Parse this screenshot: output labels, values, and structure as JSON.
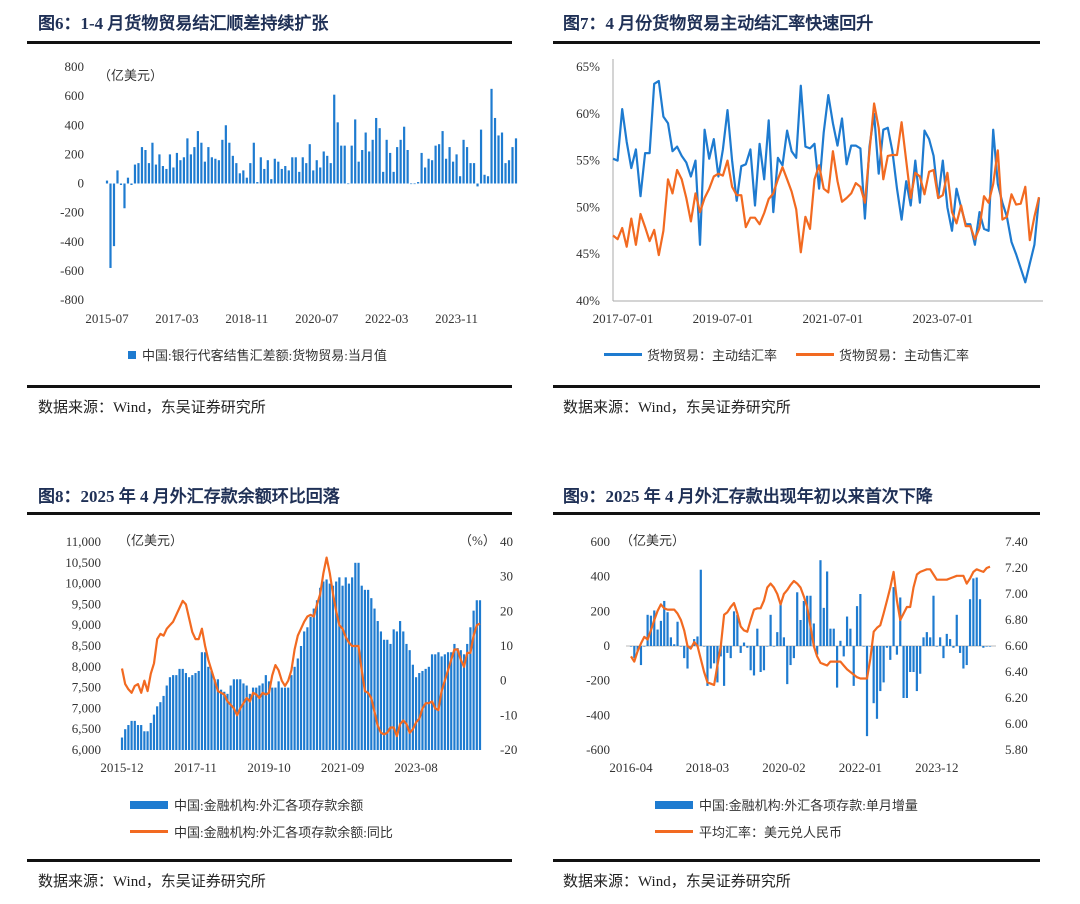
{
  "colors": {
    "blue": "#1e7bd0",
    "orange": "#f26a21",
    "title": "#1f3056"
  },
  "panels": [
    {
      "title": "图6：1-4 月货物贸易结汇顺差持续扩张",
      "source": "数据来源：Wind，东吴证券研究所"
    },
    {
      "title": "图7：4 月份货物贸易主动结汇率快速回升",
      "source": "数据来源：Wind，东吴证券研究所"
    },
    {
      "title": "图8：2025 年 4 月外汇存款余额环比回落",
      "source": "数据来源：Wind，东吴证券研究所"
    },
    {
      "title": "图9：2025 年 4 月外汇存款出现年初以来首次下降",
      "source": "数据来源：Wind，东吴证券研究所"
    }
  ],
  "chart_data": [
    {
      "type": "bar",
      "frequency": "monthly",
      "x_start": "2015-07",
      "x_ticks": [
        "2015-07",
        "2017-03",
        "2018-11",
        "2020-07",
        "2022-03",
        "2023-11"
      ],
      "y_unit_label": "（亿美元）",
      "ylim": [
        -800,
        800
      ],
      "y_ticks": [
        "800",
        "600",
        "400",
        "200",
        "0",
        "-200",
        "-400",
        "-600",
        "-800"
      ],
      "legend_position": "bottom",
      "series": [
        {
          "name": "中国:银行代客结售汇差额:货物贸易:当月值",
          "color": "#1e7bd0",
          "values": [
            20,
            -580,
            -430,
            90,
            -10,
            -170,
            40,
            -10,
            130,
            140,
            250,
            230,
            140,
            280,
            130,
            200,
            120,
            100,
            200,
            110,
            210,
            160,
            180,
            310,
            200,
            250,
            360,
            280,
            150,
            250,
            180,
            170,
            160,
            300,
            400,
            280,
            190,
            140,
            70,
            90,
            40,
            140,
            280,
            10,
            180,
            100,
            160,
            30,
            170,
            150,
            100,
            120,
            90,
            180,
            180,
            80,
            180,
            140,
            270,
            90,
            160,
            110,
            220,
            190,
            140,
            610,
            420,
            260,
            260,
            0,
            260,
            440,
            150,
            230,
            350,
            220,
            300,
            450,
            380,
            80,
            300,
            210,
            80,
            250,
            300,
            390,
            230,
            0,
            0,
            10,
            210,
            110,
            170,
            160,
            260,
            270,
            360,
            170,
            250,
            150,
            200,
            50,
            300,
            250,
            140,
            140,
            -20,
            370,
            60,
            50,
            650,
            450,
            330,
            350,
            140,
            160,
            250,
            310
          ]
        }
      ]
    },
    {
      "type": "line",
      "frequency": "monthly",
      "x_start": "2017-07-01",
      "x_ticks": [
        "2017-07-01",
        "2019-07-01",
        "2021-07-01",
        "2023-07-01"
      ],
      "ylim": [
        40,
        65
      ],
      "y_ticks": [
        "65%",
        "60%",
        "55%",
        "50%",
        "45%",
        "40%"
      ],
      "legend_position": "bottom",
      "series": [
        {
          "name": "货物贸易：主动结汇率",
          "color": "#1e7bd0",
          "values": [
            55.2,
            55,
            60.5,
            57,
            54.2,
            56.2,
            51.2,
            55.8,
            55.8,
            63.2,
            63.5,
            59.7,
            59,
            56,
            56.5,
            55.5,
            54.8,
            53.3,
            55,
            46,
            58.3,
            55.2,
            57.3,
            53.3,
            56.2,
            60.4,
            55,
            50.7,
            54.4,
            54.6,
            56.2,
            50.2,
            56.8,
            53,
            59.3,
            49.5,
            55.3,
            54.5,
            58.2,
            56,
            55.3,
            63,
            56.5,
            56.3,
            56.8,
            52,
            58,
            62,
            59,
            56.6,
            59.5,
            54.6,
            56.6,
            56.6,
            56.3,
            48.8,
            56.5,
            60,
            53.6,
            58.3,
            58.5,
            56,
            52,
            48.7,
            52.8,
            50.2,
            55,
            50.5,
            58.2,
            57.3,
            55.5,
            51,
            55,
            50,
            47.5,
            52,
            50,
            48.2,
            48.2,
            46,
            49.5,
            47.7,
            47.5,
            58.3,
            52.5,
            50.5,
            49,
            46.3,
            45,
            43.5,
            42,
            44,
            46,
            51
          ]
        },
        {
          "name": "货物贸易：主动售汇率",
          "color": "#f26a21",
          "values": [
            47,
            46.6,
            47.8,
            45.8,
            48.8,
            46,
            49.3,
            47.9,
            46.4,
            47.6,
            44.9,
            47.5,
            53,
            51.5,
            54,
            53,
            51,
            48.5,
            51.5,
            49.5,
            51,
            52,
            53.3,
            53.6,
            53.4,
            55,
            52.2,
            51.3,
            51.3,
            47.9,
            48.9,
            48.9,
            48.2,
            49.4,
            50.9,
            51.5,
            53,
            54.3,
            53,
            51.7,
            49.8,
            45.2,
            49,
            47.7,
            53,
            54.5,
            52,
            51.6,
            56,
            52.8,
            50.6,
            51,
            51.5,
            52.6,
            52.2,
            50.5,
            56,
            61.1,
            58.5,
            53,
            55.5,
            55.6,
            55.6,
            59.1,
            55,
            51,
            53.7,
            53.3,
            51.4,
            53.8,
            54,
            51,
            51.3,
            53.7,
            49.5,
            48.3,
            50.2,
            48,
            48,
            46.6,
            47.8,
            51.2,
            50.5,
            52.5,
            56.1,
            48.7,
            49,
            51.4,
            50.3,
            50.4,
            52.2,
            46.5,
            49,
            51.1
          ]
        }
      ]
    },
    {
      "type": "bar+line",
      "frequency": "monthly",
      "x_start": "2015-12",
      "x_ticks": [
        "2015-12",
        "2017-11",
        "2019-10",
        "2021-09",
        "2023-08"
      ],
      "y_unit_label": "（亿美元）",
      "y2_unit_label": "（%）",
      "ylim": [
        6000,
        11000
      ],
      "y2lim": [
        -20,
        40
      ],
      "y_ticks": [
        "11,000",
        "10,500",
        "10,000",
        "9,500",
        "9,000",
        "8,500",
        "8,000",
        "7,500",
        "7,000",
        "6,500",
        "6,000"
      ],
      "y2_ticks": [
        "40",
        "30",
        "20",
        "10",
        "0",
        "-10",
        "-20"
      ],
      "legend_position": "bottom",
      "series": [
        {
          "name": "中国:金融机构:外汇各项存款余额",
          "axis": "left",
          "color": "#1e7bd0",
          "values": [
            6300,
            6500,
            6600,
            6700,
            6700,
            6600,
            6600,
            6450,
            6450,
            6650,
            6850,
            7050,
            7150,
            7300,
            7550,
            7750,
            7800,
            7800,
            7950,
            7950,
            7850,
            7750,
            7800,
            7850,
            7900,
            8350,
            8350,
            8000,
            7900,
            7700,
            7700,
            7450,
            7400,
            7350,
            7550,
            7700,
            7700,
            7700,
            7600,
            7550,
            7350,
            7500,
            7500,
            7550,
            7600,
            7800,
            7650,
            7500,
            7500,
            7650,
            7500,
            7500,
            7500,
            7800,
            8000,
            8200,
            8500,
            8850,
            8950,
            9200,
            9400,
            9600,
            9900,
            10050,
            10100,
            10000,
            9950,
            10050,
            10150,
            9950,
            10150,
            10000,
            10150,
            10500,
            10500,
            9950,
            9850,
            9850,
            9650,
            9400,
            9100,
            8850,
            8650,
            8650,
            8550,
            8900,
            8850,
            9100,
            8850,
            8550,
            8400,
            8050,
            7750,
            7850,
            7900,
            7950,
            8000,
            8300,
            8300,
            8350,
            8250,
            8300,
            8350,
            8350,
            8550,
            8450,
            8400,
            8300,
            8550,
            8950,
            9350,
            9600,
            9600
          ]
        },
        {
          "name": "中国:金融机构:外汇各项存款余额:同比",
          "axis": "right",
          "color": "#f26a21",
          "values": [
            3.5,
            -1,
            -2.5,
            -3.5,
            -1.5,
            -1,
            -3.5,
            0,
            -3,
            2,
            5,
            12,
            13.5,
            13,
            15,
            16,
            17,
            19,
            21,
            23,
            22,
            18,
            14,
            12,
            12,
            15,
            10,
            6,
            3,
            0,
            -3,
            -3.5,
            -4,
            -6,
            -7,
            -8,
            -10,
            -8,
            -6.5,
            -5,
            -6,
            -3.5,
            -4,
            -5,
            -3.5,
            -4,
            -3.5,
            1.5,
            4.5,
            3,
            0,
            -1.5,
            0,
            3,
            9,
            13,
            15,
            17,
            18.5,
            19,
            18.5,
            22,
            25,
            31,
            35.5,
            31,
            25,
            20,
            16,
            15,
            12.5,
            11,
            10,
            10,
            10,
            3,
            -3,
            -3.5,
            -5,
            -9,
            -13,
            -15,
            -15.5,
            -15,
            -13.5,
            -13.5,
            -16,
            -12.5,
            -11.5,
            -12.5,
            -15,
            -14,
            -12,
            -11,
            -8,
            -6.5,
            -6.5,
            -6,
            -8,
            -8.5,
            -3,
            0,
            3,
            6,
            9,
            9,
            6,
            4,
            8,
            8,
            13,
            16,
            16.5
          ]
        }
      ]
    },
    {
      "type": "bar+line",
      "frequency": "monthly",
      "x_start": "2016-04",
      "x_ticks": [
        "2016-04",
        "2018-03",
        "2020-02",
        "2022-01",
        "2023-12"
      ],
      "y_unit_label": "（亿美元）",
      "ylim": [
        -600,
        600
      ],
      "y2lim": [
        5.8,
        7.4
      ],
      "y_ticks": [
        "600",
        "400",
        "200",
        "0",
        "-200",
        "-400",
        "-600"
      ],
      "y2_ticks": [
        "7.40",
        "7.20",
        "7.00",
        "6.80",
        "6.60",
        "6.40",
        "6.20",
        "6.00",
        "5.80"
      ],
      "legend_position": "bottom",
      "series": [
        {
          "name": "中国:金融机构:外汇各项存款:单月增量",
          "axis": "left",
          "color": "#1e7bd0",
          "values": [
            0,
            -70,
            -30,
            -110,
            0,
            180,
            175,
            205,
            95,
            145,
            260,
            195,
            50,
            10,
            140,
            0,
            -70,
            -130,
            0,
            40,
            55,
            440,
            0,
            -230,
            -130,
            -100,
            -210,
            -60,
            -230,
            -40,
            -70,
            200,
            180,
            -40,
            20,
            -10,
            -140,
            -170,
            100,
            -150,
            -140,
            0,
            180,
            0,
            80,
            260,
            50,
            -220,
            -110,
            -70,
            310,
            150,
            260,
            290,
            290,
            130,
            -50,
            495,
            220,
            430,
            100,
            100,
            -240,
            30,
            -60,
            170,
            100,
            -230,
            230,
            300,
            0,
            -520,
            0,
            -330,
            -420,
            -260,
            -210,
            -10,
            -80,
            340,
            -50,
            280,
            -300,
            -300,
            -150,
            -150,
            -260,
            -160,
            50,
            80,
            50,
            290,
            0,
            50,
            -70,
            70,
            40,
            -10,
            180,
            -40,
            -130,
            -110,
            270,
            390,
            395,
            270,
            -10,
            0,
            0
          ]
        },
        {
          "name": "平均汇率：美元兑人民币",
          "axis": "right",
          "color": "#f26a21",
          "values": [
            6.52,
            6.48,
            6.56,
            6.62,
            6.67,
            6.65,
            6.72,
            6.8,
            6.87,
            6.92,
            6.89,
            6.88,
            6.88,
            6.88,
            6.85,
            6.8,
            6.72,
            6.6,
            6.58,
            6.63,
            6.6,
            6.5,
            6.4,
            6.32,
            6.31,
            6.3,
            6.45,
            6.6,
            6.84,
            6.86,
            6.9,
            6.93,
            6.85,
            6.75,
            6.72,
            6.71,
            6.8,
            6.88,
            6.89,
            6.89,
            6.95,
            7.05,
            7.08,
            7.05,
            7.0,
            6.92,
            7.0,
            7.03,
            7.07,
            7.1,
            7.08,
            7.05,
            6.98,
            6.9,
            6.75,
            6.6,
            6.52,
            6.47,
            6.46,
            6.45,
            6.48,
            6.48,
            6.48,
            6.48,
            6.45,
            6.42,
            6.4,
            6.38,
            6.36,
            6.35,
            6.35,
            6.35,
            6.5,
            6.71,
            6.74,
            6.76,
            6.85,
            6.95,
            7.05,
            7.17,
            6.95,
            6.8,
            6.85,
            6.9,
            6.9,
            7.05,
            7.15,
            7.17,
            7.18,
            7.19,
            7.19,
            7.15,
            7.11,
            7.11,
            7.11,
            7.11,
            7.12,
            7.13,
            7.14,
            7.14,
            7.14,
            7.08,
            7.12,
            7.17,
            7.19,
            7.18,
            7.17,
            7.2,
            7.21
          ]
        }
      ]
    }
  ]
}
